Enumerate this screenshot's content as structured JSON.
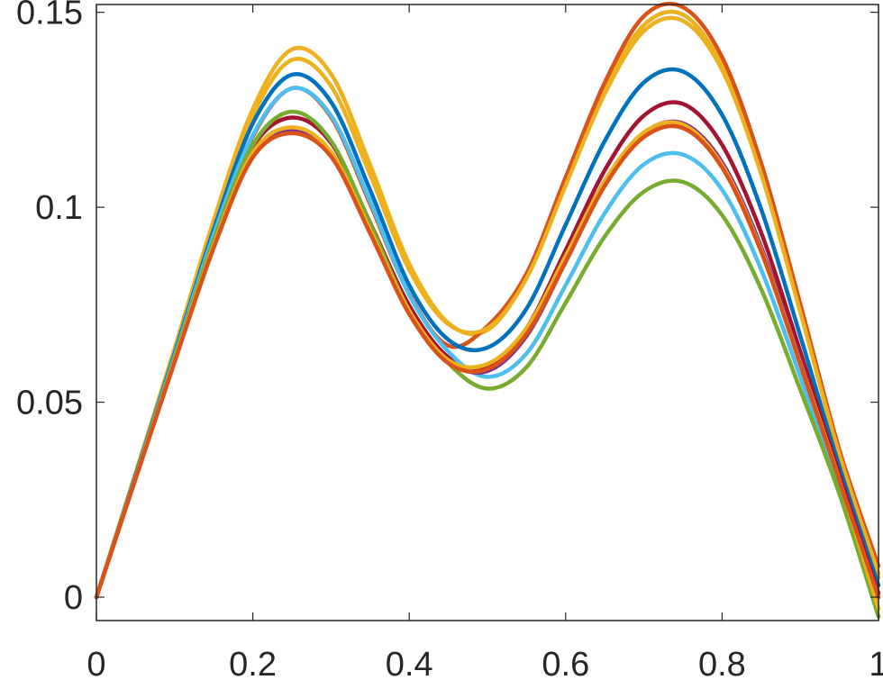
{
  "chart_data": {
    "type": "line",
    "title": "",
    "xlabel": "",
    "ylabel": "",
    "xlim": [
      0,
      1
    ],
    "ylim": [
      -0.006,
      0.152
    ],
    "grid": false,
    "legend": "none",
    "xticks": [
      0,
      0.2,
      0.4,
      0.6,
      0.8,
      1
    ],
    "xtick_labels": [
      "0",
      "0.2",
      "0.4",
      "0.6",
      "0.8",
      "1"
    ],
    "yticks": [
      0,
      0.05,
      0.1,
      0.15
    ],
    "ytick_labels": [
      "0",
      "0.05",
      "0.1",
      "0.15"
    ],
    "x": [
      0,
      0.05,
      0.1,
      0.15,
      0.2,
      0.25,
      0.3,
      0.35,
      0.4,
      0.45,
      0.5,
      0.55,
      0.6,
      0.65,
      0.7,
      0.75,
      0.8,
      0.85,
      0.9,
      0.95,
      1
    ],
    "series": [
      {
        "color": "#EDB120",
        "values": [
          0,
          0.0318,
          0.0638,
          0.0967,
          0.1252,
          0.1405,
          0.1342,
          0.1109,
          0.0855,
          0.0703,
          0.0685,
          0.0822,
          0.1066,
          0.1304,
          0.1467,
          0.1494,
          0.1363,
          0.1093,
          0.0737,
          0.0369,
          0.005
        ]
      },
      {
        "color": "#D95319",
        "values": [
          0,
          0.0305,
          0.0612,
          0.0923,
          0.1181,
          0.1305,
          0.1231,
          0.1008,
          0.0777,
          0.0645,
          0.0695,
          0.083,
          0.1077,
          0.132,
          0.149,
          0.1513,
          0.1385,
          0.1113,
          0.0752,
          0.0378,
          0.008
        ]
      },
      {
        "color": "#EDB120",
        "values": [
          0,
          0.0315,
          0.0632,
          0.0957,
          0.1235,
          0.1378,
          0.1311,
          0.1083,
          0.084,
          0.07,
          0.069,
          0.0818,
          0.1056,
          0.1291,
          0.1452,
          0.1478,
          0.1352,
          0.1085,
          0.0731,
          0.0365,
          0.006
        ]
      },
      {
        "color": "#0072BD",
        "values": [
          0,
          0.0312,
          0.0625,
          0.0943,
          0.1215,
          0.134,
          0.127,
          0.1044,
          0.08,
          0.066,
          0.064,
          0.074,
          0.0955,
          0.117,
          0.132,
          0.1348,
          0.1237,
          0.0995,
          0.067,
          0.0335,
          0.003
        ]
      },
      {
        "color": "#A2142F",
        "values": [
          0,
          0.0305,
          0.061,
          0.091,
          0.1155,
          0.123,
          0.1165,
          0.096,
          0.0748,
          0.0615,
          0.059,
          0.069,
          0.089,
          0.1095,
          0.1235,
          0.1265,
          0.116,
          0.0935,
          0.063,
          0.0315,
          0.001
        ]
      },
      {
        "color": "#4DBEEE",
        "values": [
          0,
          0.0308,
          0.0618,
          0.093,
          0.1185,
          0.1305,
          0.1235,
          0.1015,
          0.0775,
          0.063,
          0.0565,
          0.0625,
          0.08,
          0.0985,
          0.111,
          0.1135,
          0.1045,
          0.084,
          0.0565,
          0.0282,
          0.0
        ]
      },
      {
        "color": "#77AC30",
        "values": [
          0,
          0.0306,
          0.0612,
          0.0915,
          0.116,
          0.1245,
          0.117,
          0.0958,
          0.0735,
          0.06,
          0.0535,
          0.059,
          0.0755,
          0.0925,
          0.104,
          0.1065,
          0.098,
          0.079,
          0.0532,
          0.0265,
          -0.005
        ]
      },
      {
        "color": "#7E2F8E",
        "values": [
          0,
          0.0304,
          0.0605,
          0.09,
          0.1135,
          0.12,
          0.114,
          0.094,
          0.0732,
          0.0605,
          0.058,
          0.067,
          0.086,
          0.106,
          0.119,
          0.1215,
          0.1115,
          0.0898,
          0.0606,
          0.0302,
          0.0
        ]
      },
      {
        "color": "#EDB120",
        "values": [
          0,
          0.0304,
          0.0606,
          0.0902,
          0.114,
          0.1205,
          0.1142,
          0.0942,
          0.0734,
          0.0608,
          0.0598,
          0.069,
          0.0875,
          0.1068,
          0.1192,
          0.1212,
          0.1108,
          0.089,
          0.06,
          0.03,
          -0.003
        ]
      },
      {
        "color": "#D95319",
        "values": [
          0,
          0.0303,
          0.0603,
          0.0896,
          0.1128,
          0.119,
          0.113,
          0.0933,
          0.0726,
          0.06,
          0.0585,
          0.0675,
          0.086,
          0.1055,
          0.118,
          0.1203,
          0.1102,
          0.0886,
          0.0597,
          0.0298,
          0.0
        ]
      }
    ]
  }
}
